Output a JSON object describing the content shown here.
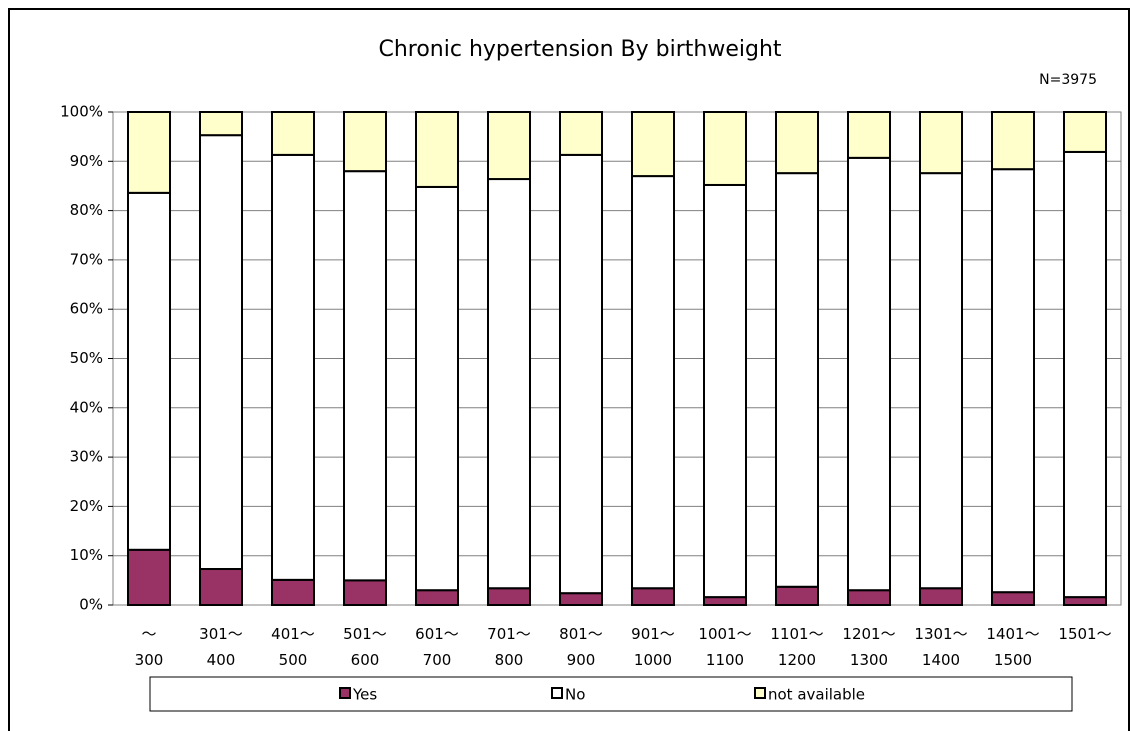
{
  "chart_data": {
    "type": "stacked_bar",
    "title": "Chronic hypertension By birthweight",
    "annotation": "N=3975",
    "categories": [
      "～300",
      "301～400",
      "401～500",
      "501～600",
      "601～700",
      "701～800",
      "801～900",
      "901～1000",
      "1001～1100",
      "1101～1200",
      "1201～1300",
      "1301～1400",
      "1401～1500",
      "1501～"
    ],
    "series": [
      {
        "name": "Yes",
        "color": "#993366",
        "values": [
          11.2,
          7.3,
          5.1,
          5.0,
          3.0,
          3.4,
          2.4,
          3.4,
          1.6,
          3.7,
          3.0,
          3.4,
          2.6,
          1.6
        ]
      },
      {
        "name": "No",
        "color": "#ffffff",
        "values": [
          72.4,
          88.0,
          86.2,
          83.0,
          81.8,
          83.0,
          88.9,
          83.6,
          83.6,
          83.9,
          87.7,
          84.2,
          85.8,
          90.3
        ]
      },
      {
        "name": "not available",
        "color": "#ffffcc",
        "values": [
          16.4,
          4.7,
          8.7,
          12.0,
          15.2,
          13.6,
          8.7,
          13.0,
          14.8,
          12.4,
          9.3,
          12.4,
          11.6,
          8.1
        ]
      }
    ],
    "ylim": [
      0,
      100
    ],
    "yticks": [
      {
        "value": 0,
        "label": "0%"
      },
      {
        "value": 10,
        "label": "10%"
      },
      {
        "value": 20,
        "label": "20%"
      },
      {
        "value": 30,
        "label": "30%"
      },
      {
        "value": 40,
        "label": "40%"
      },
      {
        "value": 50,
        "label": "50%"
      },
      {
        "value": 60,
        "label": "60%"
      },
      {
        "value": 70,
        "label": "70%"
      },
      {
        "value": 80,
        "label": "80%"
      },
      {
        "value": 90,
        "label": "90%"
      },
      {
        "value": 100,
        "label": "100%"
      }
    ],
    "grid": true,
    "legend": "bottom"
  }
}
